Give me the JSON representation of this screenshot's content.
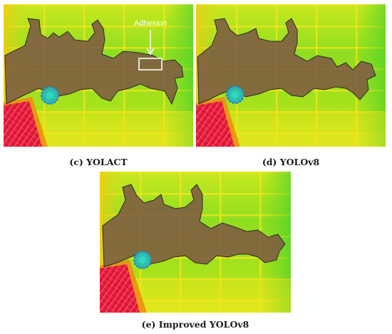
{
  "figure": {
    "panels": [
      {
        "id": "c",
        "caption": "(c) YOLACT",
        "annotation": "Adhesion"
      },
      {
        "id": "d",
        "caption": "(d) YOLOv8"
      },
      {
        "id": "e",
        "caption": "(e) Improved YOLOv8"
      }
    ],
    "colors": {
      "thermal_green": "#5fd624",
      "thermal_yellow": "#d8ec18",
      "thermal_orange": "#f08a10",
      "thermal_red": "#e8102a",
      "mask_fill": "#7d5a42",
      "mask_outline": "#2a2a2a",
      "annotation": "#ffffff"
    }
  }
}
